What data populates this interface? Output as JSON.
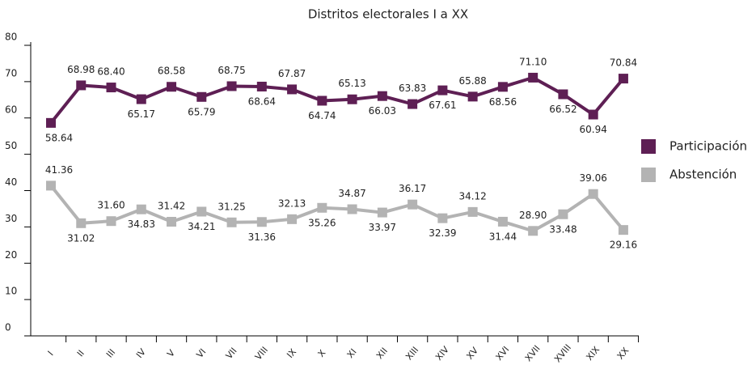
{
  "chart_data": {
    "type": "line",
    "title": "Distritos electorales I a XX",
    "categories": [
      "I",
      "II",
      "III",
      "IV",
      "V",
      "VI",
      "VII",
      "VIII",
      "IX",
      "X",
      "XI",
      "XII",
      "XIII",
      "XIV",
      "XV",
      "XVI",
      "XVII",
      "XVIII",
      "XIX",
      "XX"
    ],
    "series": [
      {
        "name": "Participación",
        "color": "#5e1f54",
        "values": [
          58.64,
          68.98,
          68.4,
          65.17,
          68.58,
          65.79,
          68.75,
          68.64,
          67.87,
          64.74,
          65.13,
          66.03,
          63.83,
          67.61,
          65.88,
          68.56,
          71.1,
          66.52,
          60.94,
          70.84
        ],
        "value_labels": [
          "58.64",
          "68.98",
          "68.40",
          "65.17",
          "68.58",
          "65.79",
          "68.75",
          "68.64",
          "67.87",
          "64.74",
          "65.13",
          "66.03",
          "63.83",
          "67.61",
          "65.88",
          "68.56",
          "71.10",
          "66.52",
          "60.94",
          "70.84"
        ]
      },
      {
        "name": "Abstención",
        "color": "#b3b3b3",
        "values": [
          41.36,
          31.02,
          31.6,
          34.83,
          31.42,
          34.21,
          31.25,
          31.36,
          32.13,
          35.26,
          34.87,
          33.97,
          36.17,
          32.39,
          34.12,
          31.44,
          28.9,
          33.48,
          39.06,
          29.16
        ],
        "value_labels": [
          "41.36",
          "31.02",
          "31.60",
          "34.83",
          "31.42",
          "34.21",
          "31.25",
          "31.36",
          "32.13",
          "35.26",
          "34.87",
          "33.97",
          "36.17",
          "32.39",
          "34.12",
          "31.44",
          "28.90",
          "33.48",
          "39.06",
          "29.16"
        ]
      }
    ],
    "ylim": [
      0,
      80
    ],
    "yticks": [
      0,
      10,
      20,
      30,
      40,
      50,
      60,
      70,
      80
    ],
    "legend": "right"
  }
}
